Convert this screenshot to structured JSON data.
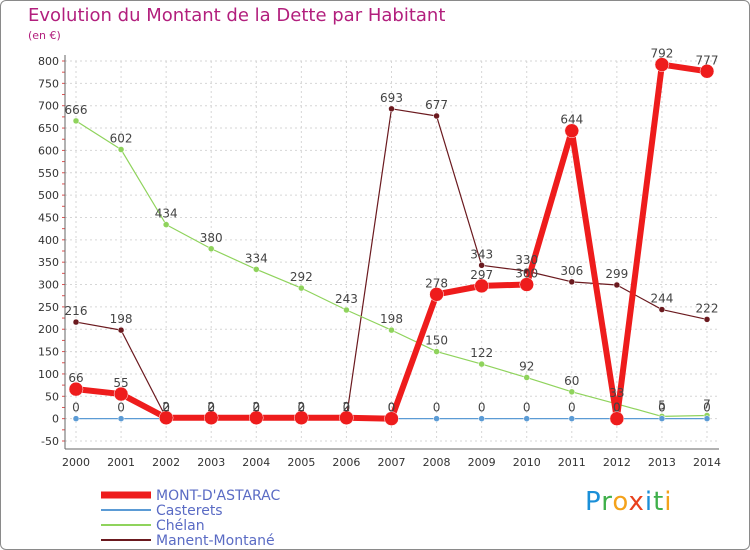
{
  "header": {
    "title": "Evolution du Montant de la Dette par Habitant",
    "subtitle": "(en €)"
  },
  "logo": {
    "letters": [
      "P",
      "r",
      "o",
      "x",
      "i",
      "t",
      "i"
    ]
  },
  "chart_data": {
    "type": "line",
    "title": "Evolution du Montant de la Dette par Habitant",
    "ylabel": "(en €)",
    "xlabel": "",
    "ylim": [
      -50,
      800
    ],
    "yticks": [
      -50,
      0,
      50,
      100,
      150,
      200,
      250,
      300,
      350,
      400,
      450,
      500,
      550,
      600,
      650,
      700,
      750,
      800
    ],
    "grid": true,
    "legend_position": "bottom-left",
    "categories": [
      "2000",
      "2001",
      "2002",
      "2003",
      "2004",
      "2005",
      "2006",
      "2007",
      "2008",
      "2009",
      "2010",
      "2011",
      "2012",
      "2013",
      "2014"
    ],
    "series": [
      {
        "name": "Manent-Montané",
        "color": "#6b1a1f",
        "values": [
          216,
          198,
          2,
          2,
          2,
          2,
          2,
          693,
          677,
          343,
          330,
          306,
          299,
          244,
          222
        ]
      },
      {
        "name": "Chélan",
        "color": "#8fd35c",
        "values": [
          666,
          602,
          434,
          380,
          334,
          292,
          243,
          198,
          150,
          122,
          92,
          60,
          33,
          5,
          7
        ]
      },
      {
        "name": "Casterets",
        "color": "#5b9bd5",
        "values": [
          0,
          0,
          0,
          0,
          0,
          0,
          0,
          0,
          0,
          0,
          0,
          0,
          0,
          0,
          0
        ]
      },
      {
        "name": "MONT-D'ASTARAC",
        "color": "#ee1c1c",
        "values": [
          66,
          55,
          2,
          2,
          2,
          2,
          2,
          0,
          278,
          297,
          300,
          644,
          0,
          792,
          777
        ]
      }
    ],
    "legend": [
      "MONT-D'ASTARAC",
      "Casterets",
      "Chélan",
      "Manent-Montané"
    ]
  }
}
